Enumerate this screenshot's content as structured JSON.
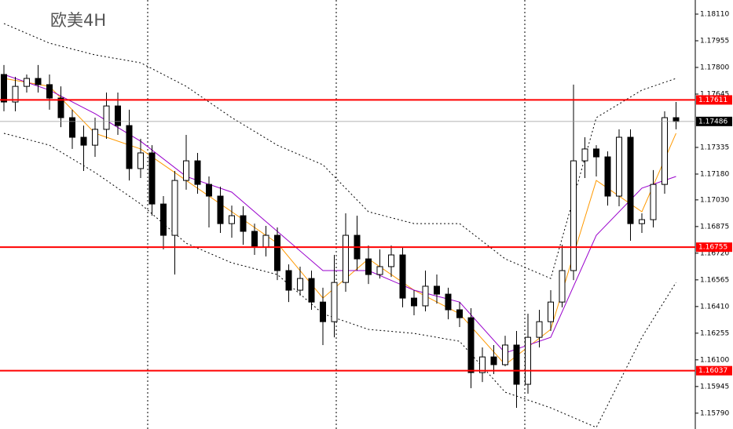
{
  "chart_data": {
    "type": "candlestick",
    "title": "欧美4H",
    "ylim": [
      1.15698,
      1.18192
    ],
    "yticks": [
      {
        "value": 1.1811,
        "label": "1.18110"
      },
      1.17955,
      {
        "value": 1.178,
        "label": "1.17800"
      },
      1.17645,
      1.17335,
      {
        "value": 1.1718,
        "label": "1.17180"
      },
      {
        "value": 1.1703,
        "label": "1.17030"
      },
      1.16875,
      {
        "value": 1.1672,
        "label": "1.16720"
      },
      1.16565,
      {
        "value": 1.1641,
        "label": "1.16410"
      },
      1.16255,
      {
        "value": 1.161,
        "label": "1.16100"
      },
      1.15945,
      {
        "value": 1.1579,
        "label": "1.15790"
      }
    ],
    "up_color": "#ffffff",
    "down_color": "#000000",
    "candles": {
      "open": [
        1.17759,
        1.17599,
        1.1769,
        1.17736,
        1.177,
        1.17622,
        1.17508,
        1.17394,
        1.17348,
        1.1744,
        1.17576,
        1.17462,
        1.17212,
        1.17303,
        1.17006,
        1.16824,
        1.17143,
        1.17257,
        1.1712,
        1.17052,
        1.16892,
        1.16938,
        1.16847,
        1.16756,
        1.16824,
        1.16619,
        1.16505,
        1.16573,
        1.16436,
        1.16322,
        1.1655,
        1.16824,
        1.16687,
        1.16596,
        1.16642,
        1.1671,
        1.16459,
        1.16414,
        1.16528,
        1.16482,
        1.16391,
        1.16345,
        1.16026,
        1.16117,
        1.16072,
        1.16186,
        1.15958,
        1.16231,
        1.16322,
        1.16436,
        1.16619,
        1.17257,
        1.17326,
        1.1728,
        1.17052,
        1.17394,
        1.16892,
        1.16915,
        1.1712,
        1.17508
      ],
      "high": [
        1.17814,
        1.17745,
        1.17759,
        1.17814,
        1.17759,
        1.1769,
        1.17554,
        1.17462,
        1.17508,
        1.17654,
        1.17654,
        1.17554,
        1.17385,
        1.17348,
        1.17052,
        1.17198,
        1.17408,
        1.17303,
        1.17166,
        1.17107,
        1.16997,
        1.16993,
        1.16892,
        1.16879,
        1.1687,
        1.16655,
        1.16642,
        1.16619,
        1.16519,
        1.1671,
        1.16952,
        1.16938,
        1.16765,
        1.16742,
        1.16765,
        1.16756,
        1.16505,
        1.16619,
        1.16596,
        1.16519,
        1.16436,
        1.164,
        1.16172,
        1.16186,
        1.1624,
        1.16268,
        1.16368,
        1.16391,
        1.16505,
        1.16769,
        1.177,
        1.17394,
        1.17348,
        1.17312,
        1.1744,
        1.1744,
        1.16952,
        1.17203,
        1.17545,
        1.17599
      ],
      "low": [
        1.17545,
        1.17545,
        1.17654,
        1.17654,
        1.17554,
        1.17453,
        1.17326,
        1.17198,
        1.1728,
        1.17385,
        1.17408,
        1.17143,
        1.17157,
        1.16938,
        1.16742,
        1.16596,
        1.17089,
        1.17066,
        1.1687,
        1.16838,
        1.1681,
        1.16769,
        1.1671,
        1.16701,
        1.16564,
        1.16436,
        1.16473,
        1.16391,
        1.16186,
        1.16231,
        1.16496,
        1.16619,
        1.16541,
        1.16573,
        1.16582,
        1.16405,
        1.16359,
        1.16382,
        1.16427,
        1.16336,
        1.16291,
        1.15935,
        1.15971,
        1.16017,
        1.16063,
        1.15821,
        1.15903,
        1.16172,
        1.16268,
        1.16405,
        1.16564,
        1.17157,
        1.17166,
        1.16997,
        1.16993,
        1.16792,
        1.16838,
        1.1687,
        1.17066,
        1.1744
      ],
      "close": [
        1.17599,
        1.1769,
        1.17736,
        1.177,
        1.17622,
        1.17508,
        1.17394,
        1.17348,
        1.1744,
        1.17576,
        1.17462,
        1.17212,
        1.17303,
        1.17006,
        1.16824,
        1.17143,
        1.17257,
        1.1712,
        1.17052,
        1.16892,
        1.16938,
        1.16847,
        1.16756,
        1.16824,
        1.16619,
        1.16505,
        1.16573,
        1.16436,
        1.16322,
        1.1655,
        1.16824,
        1.16687,
        1.16596,
        1.16642,
        1.1671,
        1.16459,
        1.16414,
        1.16528,
        1.16482,
        1.16391,
        1.16345,
        1.16026,
        1.16117,
        1.16072,
        1.16186,
        1.15958,
        1.16231,
        1.16322,
        1.16436,
        1.16619,
        1.17257,
        1.17326,
        1.1728,
        1.17052,
        1.17394,
        1.16892,
        1.16915,
        1.1712,
        1.17508,
        1.17486
      ]
    },
    "overlays": [
      {
        "color": "#ff9900",
        "dashed": false,
        "x": [
          0,
          4,
          8,
          12,
          16,
          20,
          24,
          28,
          32,
          36,
          40,
          44,
          48,
          52,
          56,
          59
        ],
        "values": [
          1.17736,
          1.1769,
          1.17417,
          1.17326,
          1.17143,
          1.16961,
          1.16778,
          1.16459,
          1.16687,
          1.16505,
          1.16368,
          1.16072,
          1.16277,
          1.17143,
          1.16961,
          1.17417
        ]
      },
      {
        "color": "#9900cc",
        "dashed": false,
        "x": [
          0,
          4,
          8,
          12,
          16,
          20,
          24,
          28,
          32,
          36,
          40,
          44,
          48,
          52,
          56,
          59
        ],
        "values": [
          1.17759,
          1.17668,
          1.17531,
          1.17371,
          1.17166,
          1.17075,
          1.16847,
          1.16619,
          1.16619,
          1.16505,
          1.16436,
          1.1614,
          1.16231,
          1.16824,
          1.17098,
          1.17166
        ]
      },
      {
        "color": "#000000",
        "dashed": true,
        "x": [
          0,
          4,
          8,
          12,
          16,
          20,
          24,
          28,
          32,
          36,
          40,
          44,
          48,
          52,
          56,
          59
        ],
        "values": [
          1.18055,
          1.17941,
          1.17873,
          1.17827,
          1.1769,
          1.17508,
          1.17348,
          1.17234,
          1.16961,
          1.16892,
          1.16892,
          1.16687,
          1.16573,
          1.17508,
          1.17668,
          1.17736
        ]
      },
      {
        "color": "#000000",
        "dashed": true,
        "x": [
          0,
          4,
          8,
          12,
          16,
          20,
          24,
          28,
          32,
          36,
          40,
          44,
          48,
          52,
          56,
          59
        ],
        "values": [
          1.17417,
          1.17348,
          1.17189,
          1.17006,
          1.16778,
          1.16664,
          1.16596,
          1.16368,
          1.16277,
          1.16254,
          1.16208,
          1.15912,
          1.15821,
          1.15707,
          1.16231,
          1.1655
        ]
      }
    ],
    "levels": [
      1.17611,
      1.16755,
      1.16037
    ],
    "level_color": "#ff0000",
    "current_price": 1.17486
  }
}
